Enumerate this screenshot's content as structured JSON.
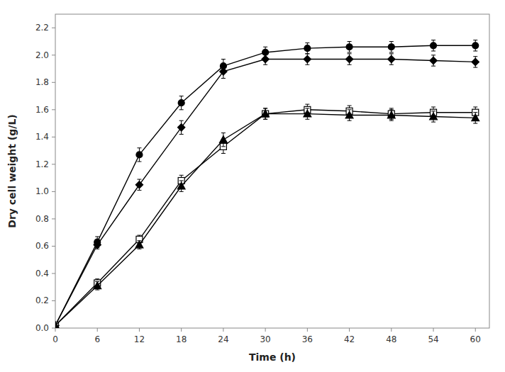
{
  "chart_data": {
    "type": "line",
    "x": [
      0,
      6,
      12,
      18,
      24,
      30,
      36,
      42,
      48,
      54,
      60
    ],
    "series": [
      {
        "values": [
          0.02,
          0.63,
          1.27,
          1.65,
          1.92,
          2.02,
          2.05,
          2.06,
          2.06,
          2.07,
          2.07
        ],
        "errors": [
          0.01,
          0.04,
          0.05,
          0.05,
          0.05,
          0.04,
          0.04,
          0.04,
          0.04,
          0.04,
          0.04
        ],
        "marker": "circle",
        "color": "black"
      },
      {
        "values": [
          0.02,
          0.61,
          1.05,
          1.47,
          1.88,
          1.97,
          1.97,
          1.97,
          1.97,
          1.96,
          1.95
        ],
        "errors": [
          0.01,
          0.03,
          0.04,
          0.05,
          0.05,
          0.04,
          0.04,
          0.04,
          0.04,
          0.04,
          0.04
        ],
        "marker": "diamond",
        "color": "black"
      },
      {
        "values": [
          0.02,
          0.33,
          0.65,
          1.08,
          1.33,
          1.57,
          1.6,
          1.59,
          1.57,
          1.58,
          1.58
        ],
        "errors": [
          0.01,
          0.03,
          0.03,
          0.04,
          0.05,
          0.04,
          0.04,
          0.04,
          0.04,
          0.04,
          0.04
        ],
        "marker": "open-square",
        "color": "black"
      },
      {
        "values": [
          0.02,
          0.31,
          0.61,
          1.04,
          1.38,
          1.57,
          1.57,
          1.56,
          1.56,
          1.55,
          1.54
        ],
        "errors": [
          0.01,
          0.03,
          0.03,
          0.04,
          0.05,
          0.04,
          0.04,
          0.04,
          0.04,
          0.04,
          0.04
        ],
        "marker": "triangle",
        "color": "black"
      }
    ],
    "x_label": "Time (h)",
    "y_label": "Dry cell weight (g/L)",
    "xlim": [
      0,
      62
    ],
    "ylim": [
      0,
      2.3
    ],
    "xticks": [
      0,
      6,
      12,
      18,
      24,
      30,
      36,
      42,
      48,
      54,
      60
    ],
    "yticks": [
      {
        "value": 0.0,
        "label": "0.0"
      },
      0.2,
      0.4,
      0.6,
      0.8,
      {
        "value": 1.0,
        "label": "1.0"
      },
      1.2,
      1.4,
      1.6,
      1.8,
      {
        "value": 2.0,
        "label": "2.0"
      },
      2.2
    ],
    "grid": false
  }
}
